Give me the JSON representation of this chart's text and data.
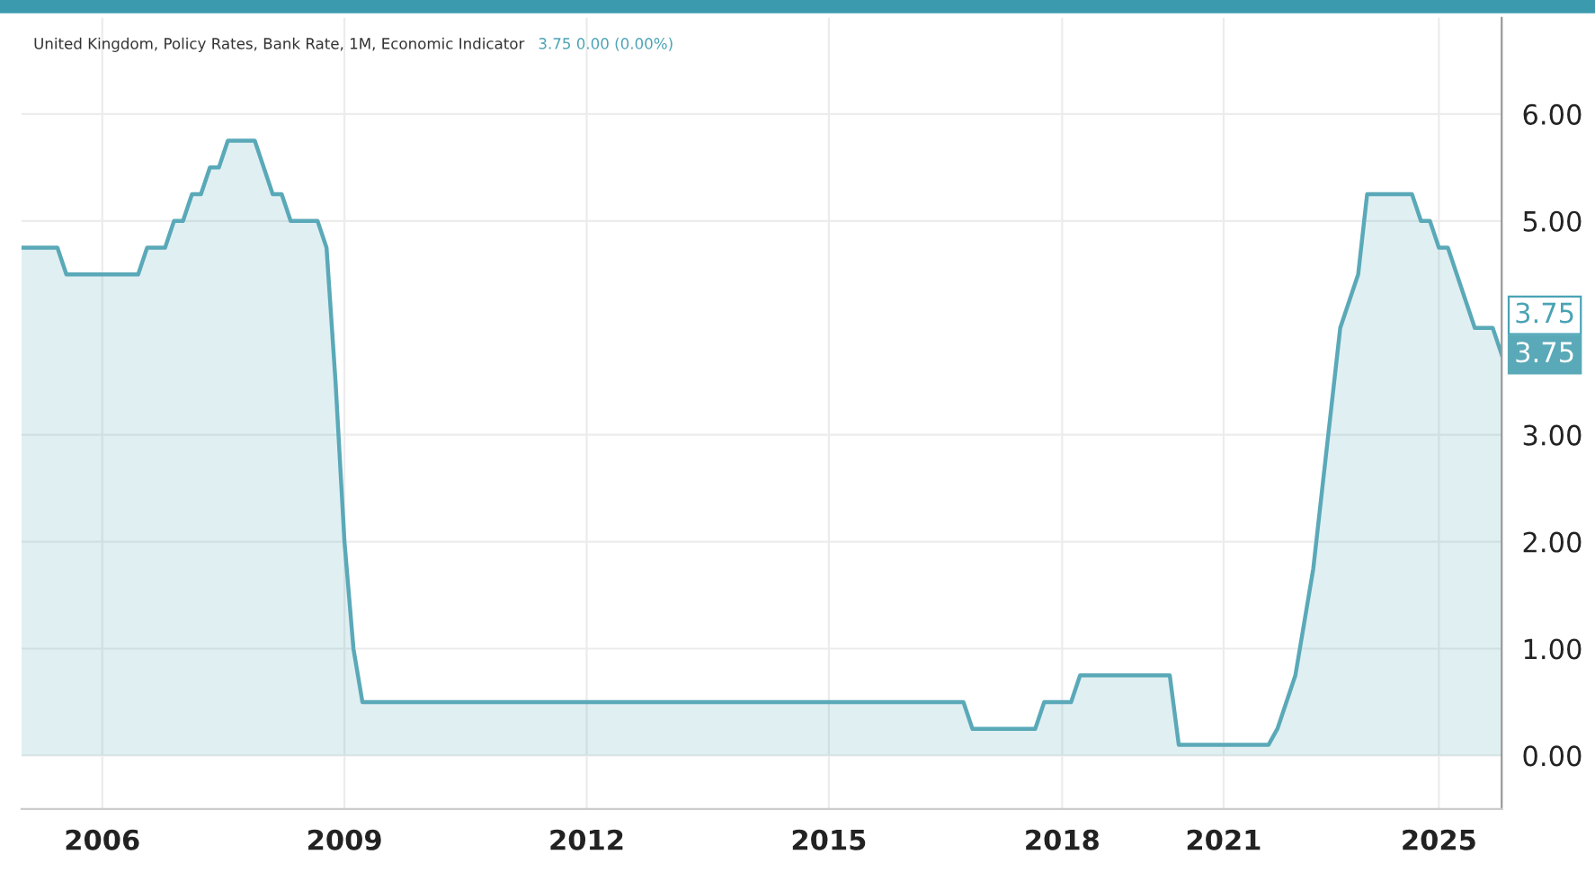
{
  "chart_data": {
    "type": "area",
    "title": "United Kingdom, Policy Rates, Bank Rate, 1M, Economic Indicator",
    "annotations": [
      "3.75 0.00 (0.00%)",
      "3.75",
      "3.75"
    ],
    "categories": [
      null,
      null,
      null,
      null,
      null,
      null,
      null,
      null,
      null,
      "2006",
      null,
      null,
      null,
      null,
      null,
      null,
      null,
      null,
      null,
      null,
      null,
      null,
      null,
      null,
      null,
      null,
      null,
      null,
      null,
      null,
      null,
      null,
      null,
      null,
      null,
      null,
      "2009",
      null,
      null,
      null,
      null,
      null,
      null,
      null,
      null,
      null,
      null,
      null,
      null,
      null,
      null,
      null,
      null,
      null,
      null,
      null,
      null,
      null,
      null,
      null,
      null,
      null,
      null,
      "2012",
      null,
      null,
      null,
      null,
      null,
      null,
      null,
      null,
      null,
      null,
      null,
      null,
      null,
      null,
      null,
      null,
      null,
      null,
      null,
      null,
      null,
      null,
      null,
      null,
      null,
      null,
      "2015",
      null,
      null,
      null,
      null,
      null,
      null,
      null,
      null,
      null,
      null,
      null,
      null,
      null,
      null,
      null,
      null,
      null,
      null,
      null,
      null,
      null,
      null,
      null,
      null,
      null,
      "2018",
      null,
      null,
      null,
      null,
      null,
      null,
      null,
      null,
      null,
      null,
      null,
      null,
      null,
      null,
      null,
      null,
      null,
      "2021",
      null,
      null,
      null,
      null,
      null,
      null,
      null,
      null,
      null,
      null,
      null,
      null,
      null,
      null,
      null,
      null,
      null,
      null,
      null,
      null,
      null,
      null,
      null,
      "2025",
      null,
      null,
      null,
      null,
      null,
      null,
      null
    ],
    "series": [
      {
        "color": "#5aa9b8",
        "values": [
          4.75,
          4.75,
          4.75,
          4.75,
          4.75,
          4.5,
          4.5,
          4.5,
          4.5,
          4.5,
          4.5,
          4.5,
          4.5,
          4.5,
          4.75,
          4.75,
          4.75,
          5.0,
          5.0,
          5.25,
          5.25,
          5.5,
          5.5,
          5.75,
          5.75,
          5.75,
          5.75,
          5.5,
          5.25,
          5.25,
          5.0,
          5.0,
          5.0,
          5.0,
          4.75,
          3.5,
          2.0,
          1.0,
          0.5,
          0.5,
          0.5,
          0.5,
          0.5,
          0.5,
          0.5,
          0.5,
          0.5,
          0.5,
          0.5,
          0.5,
          0.5,
          0.5,
          0.5,
          0.5,
          0.5,
          0.5,
          0.5,
          0.5,
          0.5,
          0.5,
          0.5,
          0.5,
          0.5,
          0.5,
          0.5,
          0.5,
          0.5,
          0.5,
          0.5,
          0.5,
          0.5,
          0.5,
          0.5,
          0.5,
          0.5,
          0.5,
          0.5,
          0.5,
          0.5,
          0.5,
          0.5,
          0.5,
          0.5,
          0.5,
          0.5,
          0.5,
          0.5,
          0.5,
          0.5,
          0.5,
          0.5,
          0.5,
          0.5,
          0.5,
          0.5,
          0.5,
          0.5,
          0.5,
          0.5,
          0.5,
          0.5,
          0.5,
          0.5,
          0.5,
          0.5,
          0.5,
          0.25,
          0.25,
          0.25,
          0.25,
          0.25,
          0.25,
          0.25,
          0.25,
          0.5,
          0.5,
          0.5,
          0.5,
          0.75,
          0.75,
          0.75,
          0.75,
          0.75,
          0.75,
          0.75,
          0.75,
          0.75,
          0.75,
          0.75,
          0.1,
          0.1,
          0.1,
          0.1,
          0.1,
          0.1,
          0.1,
          0.1,
          0.1,
          0.1,
          0.1,
          0.25,
          0.5,
          0.75,
          1.25,
          1.75,
          2.5,
          3.25,
          4.0,
          4.25,
          4.5,
          5.25,
          5.25,
          5.25,
          5.25,
          5.25,
          5.25,
          5.0,
          5.0,
          4.75,
          4.75,
          4.5,
          4.25,
          4.0,
          4.0,
          4.0,
          3.75
        ]
      }
    ],
    "ylim": [
      -0.5,
      6.9
    ],
    "yticks": [
      {
        "value": 0,
        "label": "0.00"
      },
      {
        "value": 1,
        "label": "1.00"
      },
      {
        "value": 2,
        "label": "2.00"
      },
      {
        "value": 3,
        "label": "3.00"
      },
      {
        "value": 5,
        "label": "5.00"
      },
      {
        "value": 6,
        "label": "6.00"
      }
    ],
    "grid": true
  }
}
